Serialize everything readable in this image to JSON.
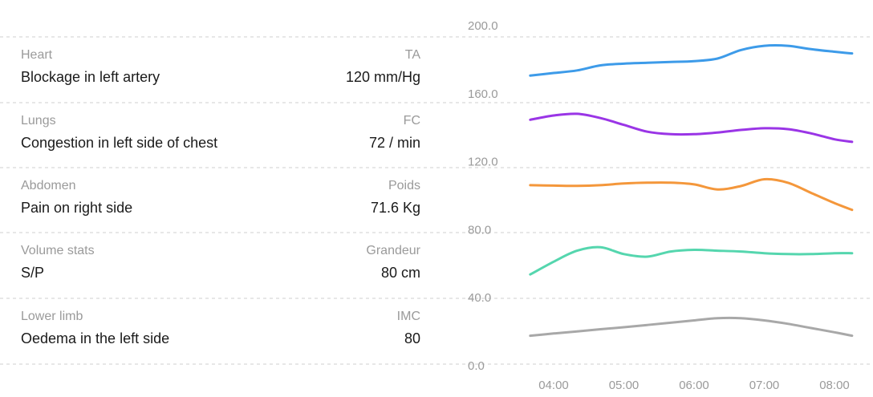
{
  "rows": [
    {
      "category": "Heart",
      "finding": "Blockage in left artery",
      "metric_label": "TA",
      "metric_value": "120 mm/Hg"
    },
    {
      "category": "Lungs",
      "finding": "Congestion in left side of chest",
      "metric_label": "FC",
      "metric_value": "72 / min"
    },
    {
      "category": "Abdomen",
      "finding": "Pain on right side",
      "metric_label": "Poids",
      "metric_value": "71.6 Kg"
    },
    {
      "category": "Volume stats",
      "finding": "S/P",
      "metric_label": "Grandeur",
      "metric_value": "80 cm"
    },
    {
      "category": "Lower limb",
      "finding": "Oedema in the left side",
      "metric_label": "IMC",
      "metric_value": "80"
    }
  ],
  "chart_data": {
    "type": "line",
    "x": [
      "03:40",
      "04:00",
      "04:20",
      "04:40",
      "05:00",
      "05:20",
      "05:40",
      "06:00",
      "06:20",
      "06:40",
      "07:00",
      "07:20",
      "07:40",
      "08:00",
      "08:15"
    ],
    "x_tick_labels": [
      "04:00",
      "05:00",
      "06:00",
      "07:00",
      "08:00"
    ],
    "y_tick_labels": [
      "200.0",
      "160.0",
      "120.0",
      "80.0",
      "40.0",
      "0.0"
    ],
    "ylim": [
      0,
      200
    ],
    "grid": true,
    "series": [
      {
        "color": "#3d9be9",
        "values": [
          165,
          166.5,
          168,
          171,
          172,
          172.5,
          173,
          173.5,
          175,
          180,
          182.5,
          182.5,
          180.5,
          179,
          178
        ]
      },
      {
        "color": "#9a35e6",
        "values": [
          139,
          141.5,
          142.5,
          140,
          136,
          132,
          130.5,
          130.5,
          131.5,
          133,
          134,
          133.5,
          131,
          127.5,
          126
        ]
      },
      {
        "color": "#f4973b",
        "values": [
          100.5,
          100.3,
          100.1,
          100.5,
          101.5,
          102,
          102,
          101,
          98,
          100,
          104,
          102,
          96,
          90,
          86
        ]
      },
      {
        "color": "#55d6ae",
        "values": [
          48,
          55.5,
          62,
          64,
          60,
          58.5,
          61.5,
          62.5,
          62,
          61.5,
          60.5,
          60,
          60,
          60.5,
          60.5
        ]
      },
      {
        "color": "#a8a8a8",
        "values": [
          12,
          13.3,
          14.5,
          15.8,
          17,
          18.3,
          19.6,
          21,
          22.3,
          22.3,
          21,
          19,
          16.5,
          14,
          12
        ]
      }
    ]
  }
}
